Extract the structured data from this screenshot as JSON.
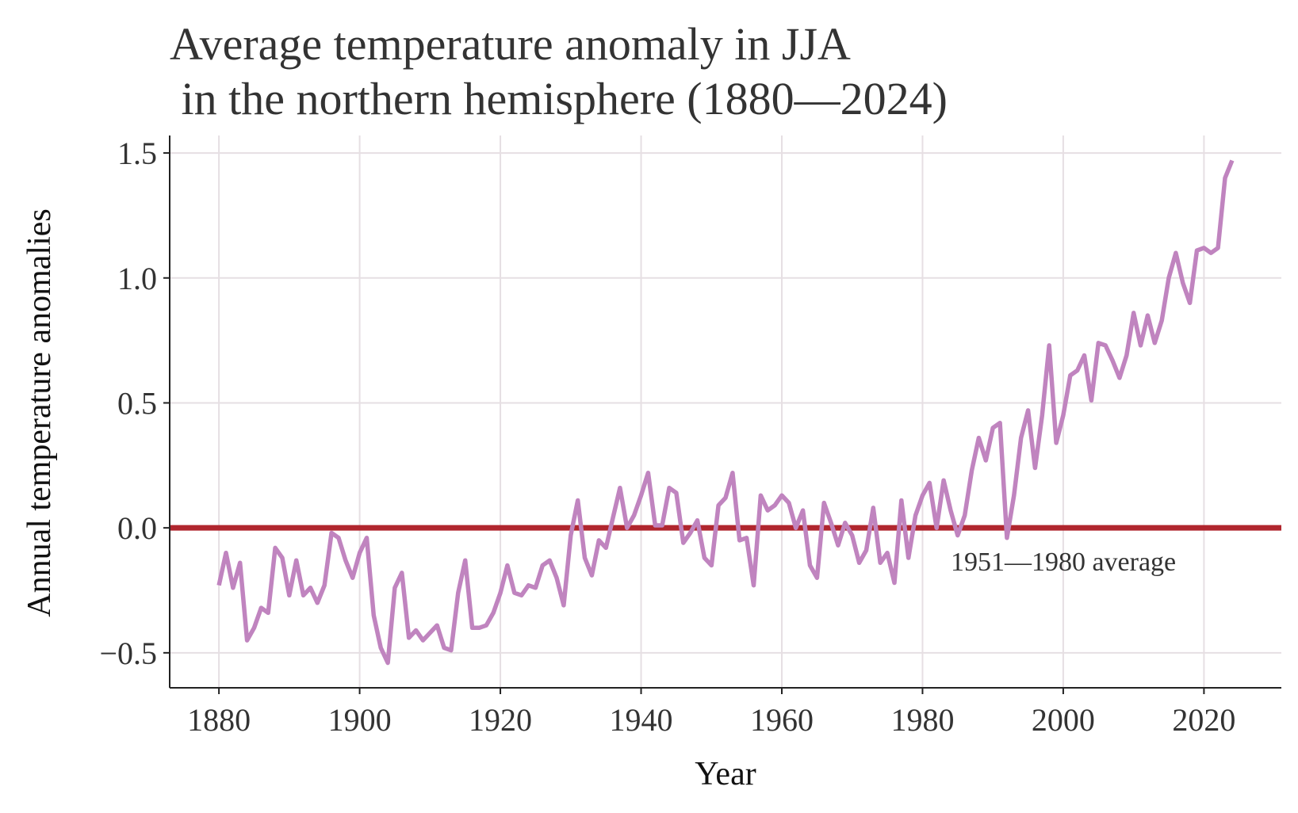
{
  "chart_data": {
    "type": "line",
    "title": "Average temperature anomaly in JJA\n in the northern hemisphere (1880—2024)",
    "title_lines": [
      "Average temperature anomaly in JJA",
      " in the northern hemisphere (1880—2024)"
    ],
    "xlabel": "Year",
    "ylabel": "Annual temperature anomalies",
    "xlim": [
      1873,
      2031
    ],
    "ylim": [
      -0.64,
      1.57
    ],
    "xticks": [
      1880,
      1900,
      1920,
      1940,
      1960,
      1980,
      2000,
      2020
    ],
    "xtick_labels": [
      "1880",
      "1900",
      "1920",
      "1940",
      "1960",
      "1980",
      "2000",
      "2020"
    ],
    "yticks": [
      -0.5,
      0.0,
      0.5,
      1.0,
      1.5
    ],
    "ytick_labels": [
      "−0.5",
      "0.0",
      "0.5",
      "1.0",
      "1.5"
    ],
    "grid": true,
    "series": [
      {
        "color": "#c084bf",
        "x": [
          1880,
          1881,
          1882,
          1883,
          1884,
          1885,
          1886,
          1887,
          1888,
          1889,
          1890,
          1891,
          1892,
          1893,
          1894,
          1895,
          1896,
          1897,
          1898,
          1899,
          1900,
          1901,
          1902,
          1903,
          1904,
          1905,
          1906,
          1907,
          1908,
          1909,
          1910,
          1911,
          1912,
          1913,
          1914,
          1915,
          1916,
          1917,
          1918,
          1919,
          1920,
          1921,
          1922,
          1923,
          1924,
          1925,
          1926,
          1927,
          1928,
          1929,
          1930,
          1931,
          1932,
          1933,
          1934,
          1935,
          1936,
          1937,
          1938,
          1939,
          1940,
          1941,
          1942,
          1943,
          1944,
          1945,
          1946,
          1947,
          1948,
          1949,
          1950,
          1951,
          1952,
          1953,
          1954,
          1955,
          1956,
          1957,
          1958,
          1959,
          1960,
          1961,
          1962,
          1963,
          1964,
          1965,
          1966,
          1967,
          1968,
          1969,
          1970,
          1971,
          1972,
          1973,
          1974,
          1975,
          1976,
          1977,
          1978,
          1979,
          1980,
          1981,
          1982,
          1983,
          1984,
          1985,
          1986,
          1987,
          1988,
          1989,
          1990,
          1991,
          1992,
          1993,
          1994,
          1995,
          1996,
          1997,
          1998,
          1999,
          2000,
          2001,
          2002,
          2003,
          2004,
          2005,
          2006,
          2007,
          2008,
          2009,
          2010,
          2011,
          2012,
          2013,
          2014,
          2015,
          2016,
          2017,
          2018,
          2019,
          2020,
          2021,
          2022,
          2023,
          2024
        ],
        "y": [
          -0.23,
          -0.1,
          -0.24,
          -0.14,
          -0.45,
          -0.4,
          -0.32,
          -0.34,
          -0.08,
          -0.12,
          -0.27,
          -0.13,
          -0.27,
          -0.24,
          -0.3,
          -0.23,
          -0.02,
          -0.04,
          -0.13,
          -0.2,
          -0.1,
          -0.04,
          -0.35,
          -0.48,
          -0.54,
          -0.24,
          -0.18,
          -0.44,
          -0.41,
          -0.45,
          -0.42,
          -0.39,
          -0.48,
          -0.49,
          -0.26,
          -0.13,
          -0.4,
          -0.4,
          -0.39,
          -0.34,
          -0.26,
          -0.15,
          -0.26,
          -0.27,
          -0.23,
          -0.24,
          -0.15,
          -0.13,
          -0.2,
          -0.31,
          -0.03,
          0.11,
          -0.12,
          -0.19,
          -0.05,
          -0.08,
          0.04,
          0.16,
          0.0,
          0.05,
          0.13,
          0.22,
          0.01,
          0.01,
          0.16,
          0.14,
          -0.06,
          -0.02,
          0.03,
          -0.12,
          -0.15,
          0.09,
          0.12,
          0.22,
          -0.05,
          -0.04,
          -0.23,
          0.13,
          0.07,
          0.09,
          0.13,
          0.1,
          0.0,
          0.07,
          -0.15,
          -0.2,
          0.1,
          0.02,
          -0.07,
          0.02,
          -0.03,
          -0.14,
          -0.09,
          0.08,
          -0.14,
          -0.1,
          -0.22,
          0.11,
          -0.12,
          0.05,
          0.13,
          0.18,
          0.0,
          0.19,
          0.07,
          -0.03,
          0.05,
          0.23,
          0.36,
          0.27,
          0.4,
          0.42,
          -0.04,
          0.13,
          0.36,
          0.47,
          0.24,
          0.45,
          0.73,
          0.34,
          0.45,
          0.61,
          0.63,
          0.69,
          0.51,
          0.74,
          0.73,
          0.67,
          0.6,
          0.69,
          0.86,
          0.73,
          0.85,
          0.74,
          0.83,
          1.0,
          1.1,
          0.98,
          0.9,
          1.11,
          1.12,
          1.1,
          1.12,
          1.4,
          1.47
        ]
      }
    ],
    "reference_line": {
      "y": 0.0,
      "color": "#b0262e",
      "label": "1951—1980 average",
      "label_x": 1984,
      "label_y": -0.17
    }
  }
}
